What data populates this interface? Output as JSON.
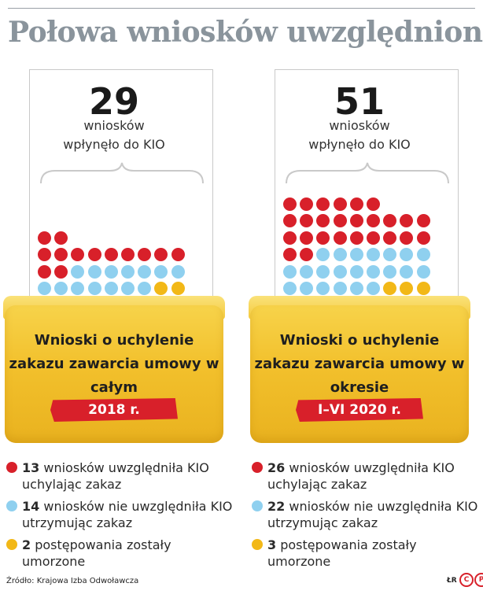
{
  "title": "Połowa wniosków uwzględniona",
  "colors": {
    "red": "#d8202a",
    "blue": "#8fd0ef",
    "yellow": "#f2b817"
  },
  "panels": [
    {
      "count": "29",
      "sub1": "wniosków",
      "sub2": "wpłynęło do KIO",
      "folder_text": "Wnioski o uchylenie zakazu zawarcia umowy w całym",
      "period": "2018 r.",
      "legend": [
        {
          "num": "13",
          "text": " wniosków uwzględniła KIO uchylając zakaz"
        },
        {
          "num": "14",
          "text": " wniosków nie uwzględniła KIO utrzymując zakaz"
        },
        {
          "num": "2",
          "text": " postępowania zostały umorzone"
        }
      ]
    },
    {
      "count": "51",
      "sub1": "wniosków",
      "sub2": "wpłynęło do KIO",
      "folder_text": "Wnioski o uchylenie zakazu zawarcia umowy w okresie",
      "period": "I–VI 2020 r.",
      "legend": [
        {
          "num": "26",
          "text": " wniosków uwzględniła KIO uchylając zakaz"
        },
        {
          "num": "22",
          "text": " wniosków nie uwzględniła KIO utrzymując zakaz"
        },
        {
          "num": "3",
          "text": " postępowania zostały umorzone"
        }
      ]
    }
  ],
  "chart_data": [
    {
      "type": "dot-matrix",
      "categories": [
        "uwzględnione",
        "nieuwzględnione",
        "umorzone"
      ],
      "values": [
        13,
        14,
        2
      ],
      "total": 29
    },
    {
      "type": "dot-matrix",
      "categories": [
        "uwzględnione",
        "nieuwzględnione",
        "umorzone"
      ],
      "values": [
        26,
        22,
        3
      ],
      "total": 51
    }
  ],
  "source": "Źródło: Krajowa Izba Odwoławcza",
  "initials": "ŁR",
  "logo_letters": [
    "C",
    "P"
  ]
}
